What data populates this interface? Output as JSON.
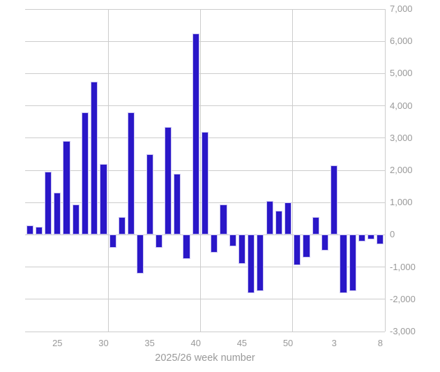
{
  "chart_data": {
    "type": "bar",
    "title": "",
    "xlabel": "2025/26 week number",
    "ylabel": "",
    "ylim": [
      -3000,
      7000
    ],
    "y_tick_step": 1000,
    "grid": "on",
    "legend": "none",
    "categories": [
      "22",
      "23",
      "24",
      "25",
      "26",
      "27",
      "28",
      "29",
      "30",
      "31",
      "32",
      "33",
      "34",
      "35",
      "36",
      "37",
      "38",
      "39",
      "40",
      "41",
      "42",
      "43",
      "44",
      "45",
      "46",
      "47",
      "48",
      "49",
      "50",
      "51",
      "52",
      "1",
      "2",
      "3",
      "4",
      "5",
      "6",
      "7",
      "8"
    ],
    "values": [
      300,
      250,
      1950,
      1300,
      2900,
      950,
      3800,
      4750,
      2200,
      -400,
      550,
      3800,
      -1200,
      2500,
      -400,
      3350,
      1900,
      -750,
      6250,
      3200,
      -550,
      950,
      -350,
      -900,
      -1800,
      -1750,
      1050,
      750,
      1000,
      -950,
      -700,
      550,
      -500,
      2150,
      -1800,
      -1750,
      -200,
      -150,
      -300
    ],
    "x_tick_labels": [
      "25",
      "30",
      "35",
      "40",
      "45",
      "50",
      "3",
      "8"
    ],
    "y_tick_labels": [
      "7,000",
      "6,000",
      "5,000",
      "4,000",
      "3,000",
      "2,000",
      "1,000",
      "0",
      "-1,000",
      "-2,000",
      "-3,000"
    ],
    "x_grid_boundaries": [
      9,
      19,
      29,
      39
    ],
    "colors": {
      "bar": "#2A17C8",
      "grid": "#cccccc",
      "axis_text": "#999999",
      "background": "#ffffff"
    }
  }
}
